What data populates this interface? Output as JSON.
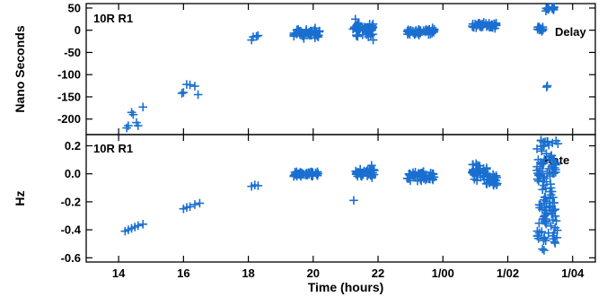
{
  "chart_data": [
    {
      "type": "scatter",
      "panel_label": "10R R1",
      "series": [
        {
          "name": "Delay",
          "marker": "+",
          "color": "#1a6fd0"
        }
      ],
      "ylabel": "Nano Seconds",
      "xlabel": "",
      "ylim": [
        -235,
        60
      ],
      "yticks": [
        50,
        0,
        -50,
        -100,
        -150,
        -200
      ],
      "grid": false,
      "clusters": [
        {
          "points": [
            [
              14.3,
              -215
            ],
            [
              14.25,
              -220
            ],
            [
              14.4,
              -185
            ],
            [
              14.45,
              -190
            ],
            [
              14.55,
              -208
            ],
            [
              14.6,
              -215
            ],
            [
              14.75,
              -173
            ]
          ]
        },
        {
          "points": [
            [
              15.95,
              -142
            ],
            [
              16.0,
              -140
            ],
            [
              16.1,
              -122
            ],
            [
              16.2,
              -123
            ],
            [
              16.35,
              -126
            ],
            [
              16.45,
              -145
            ]
          ]
        },
        {
          "points": [
            [
              18.1,
              -22
            ],
            [
              18.15,
              -15
            ],
            [
              18.25,
              -14
            ],
            [
              18.3,
              -12
            ]
          ]
        },
        {
          "x": [
            19.4,
            20.2
          ],
          "ymin": -22,
          "ymax": 8,
          "n": 55
        },
        {
          "x": [
            21.2,
            21.85
          ],
          "ymin": -18,
          "ymax": 22,
          "n": 50,
          "extra": [
            [
              21.3,
              25
            ],
            [
              21.85,
              -22
            ]
          ]
        },
        {
          "x": [
            22.9,
            23.75
          ],
          "ymin": -12,
          "ymax": 6,
          "n": 50
        },
        {
          "x": [
            24.9,
            25.65
          ],
          "ymin": 3,
          "ymax": 18,
          "n": 45
        },
        {
          "x": [
            26.9,
            27.1
          ],
          "ymin": -5,
          "ymax": 10,
          "n": 15
        },
        {
          "x": [
            27.15,
            27.45
          ],
          "ymin": 42,
          "ymax": 55,
          "n": 15,
          "extra": [
            [
              27.2,
              -128
            ],
            [
              27.22,
              -125
            ]
          ]
        }
      ],
      "annotation": "Delay"
    },
    {
      "type": "scatter",
      "panel_label": "10R R1",
      "series": [
        {
          "name": "Rate",
          "marker": "+",
          "color": "#1a6fd0"
        }
      ],
      "ylabel": "Hz",
      "xlabel": "Time (hours)",
      "ylim": [
        -0.63,
        0.28
      ],
      "yticks": [
        0.2,
        0.0,
        -0.2,
        -0.4,
        -0.6
      ],
      "grid": false,
      "clusters": [
        {
          "points": [
            [
              14.2,
              -0.41
            ],
            [
              14.3,
              -0.4
            ],
            [
              14.4,
              -0.39
            ],
            [
              14.5,
              -0.38
            ],
            [
              14.6,
              -0.37
            ],
            [
              14.75,
              -0.36
            ]
          ]
        },
        {
          "points": [
            [
              16.0,
              -0.25
            ],
            [
              16.1,
              -0.24
            ],
            [
              16.2,
              -0.235
            ],
            [
              16.35,
              -0.22
            ],
            [
              16.5,
              -0.21
            ]
          ]
        },
        {
          "points": [
            [
              18.1,
              -0.09
            ],
            [
              18.2,
              -0.08
            ],
            [
              18.3,
              -0.085
            ]
          ]
        },
        {
          "x": [
            19.4,
            20.2
          ],
          "ymin": -0.02,
          "ymax": 0.02,
          "n": 45
        },
        {
          "x": [
            21.3,
            21.9
          ],
          "ymin": -0.03,
          "ymax": 0.04,
          "n": 40,
          "extra": [
            [
              21.25,
              -0.19
            ],
            [
              21.8,
              0.06
            ]
          ]
        },
        {
          "x": [
            22.9,
            23.75
          ],
          "ymin": -0.06,
          "ymax": 0.03,
          "n": 50
        },
        {
          "x": [
            24.9,
            25.7
          ],
          "ymin": -0.08,
          "ymax": 0.06,
          "n": 70,
          "slope": -0.08
        },
        {
          "x": [
            26.9,
            27.55
          ],
          "ymin": -0.55,
          "ymax": 0.24,
          "n": 120,
          "band": true
        }
      ],
      "annotation": "Rate"
    }
  ],
  "x_axis": {
    "range": [
      13,
      28.7
    ],
    "ticks": [
      {
        "value": 14,
        "label": "14"
      },
      {
        "value": 16,
        "label": "16"
      },
      {
        "value": 18,
        "label": "18"
      },
      {
        "value": 20,
        "label": "20"
      },
      {
        "value": 22,
        "label": "22"
      },
      {
        "value": 24,
        "label": "1/00"
      },
      {
        "value": 26,
        "label": "1/02"
      },
      {
        "value": 28,
        "label": "1/04"
      }
    ]
  }
}
